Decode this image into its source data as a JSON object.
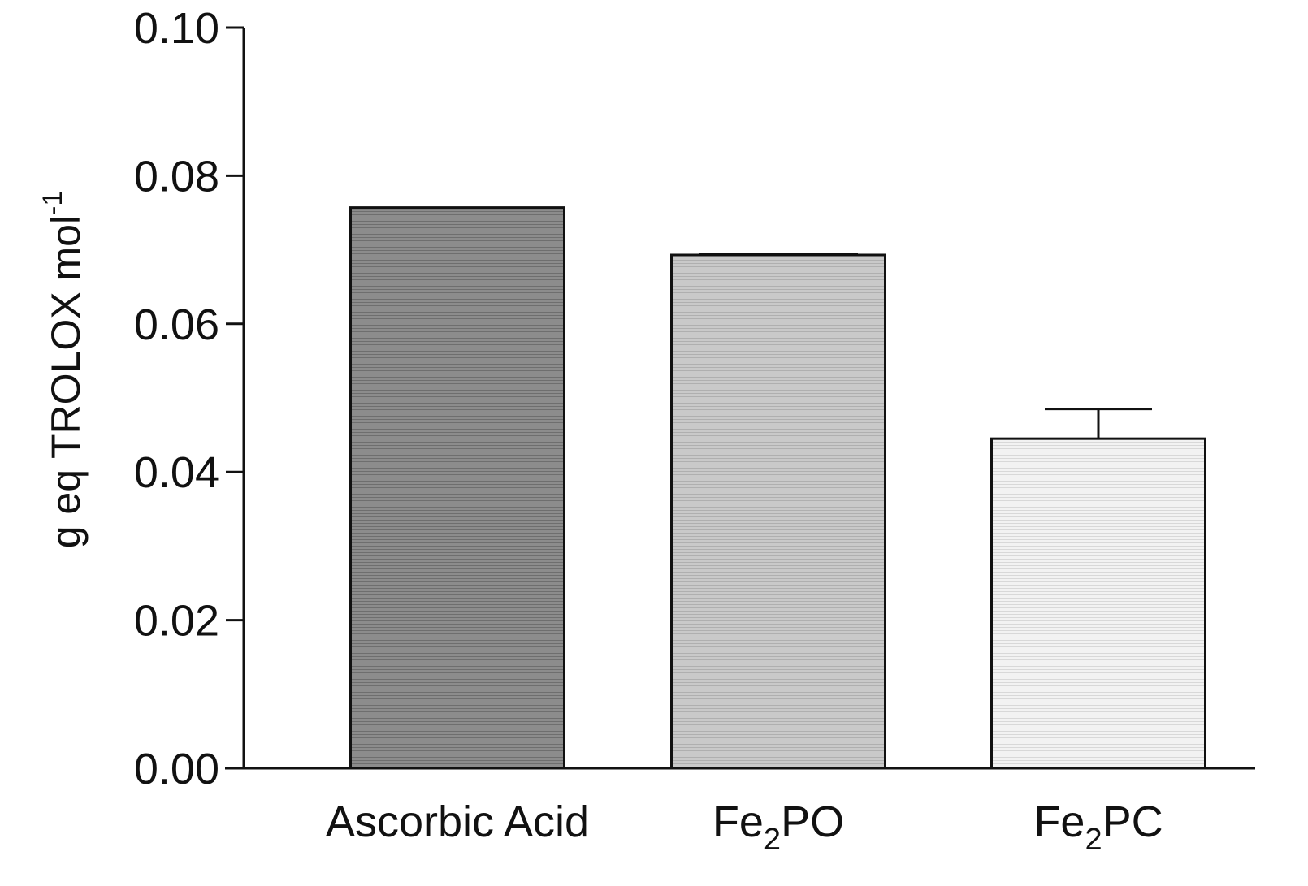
{
  "chart_data": {
    "type": "bar",
    "title": "",
    "xlabel": "",
    "ylabel": {
      "main": "g eq TROLOX mol",
      "superscript": "-1"
    },
    "ylim": [
      0,
      0.1
    ],
    "yticks": [
      "0.00",
      "0.02",
      "0.04",
      "0.06",
      "0.08",
      "0.10"
    ],
    "grid": false,
    "categories": [
      {
        "base": "Ascorbic Acid",
        "sub": "",
        "tail": ""
      },
      {
        "base": "Fe",
        "sub": "2",
        "tail": "PO"
      },
      {
        "base": "Fe",
        "sub": "2",
        "tail": "PC"
      }
    ],
    "values": [
      0.0757,
      0.0693,
      0.0445
    ],
    "error": [
      0,
      0.0001,
      0.004
    ],
    "colors": [
      "#8c8c8c",
      "#c9c9c9",
      "#f0f0f0"
    ],
    "edge_color": "#111111"
  }
}
